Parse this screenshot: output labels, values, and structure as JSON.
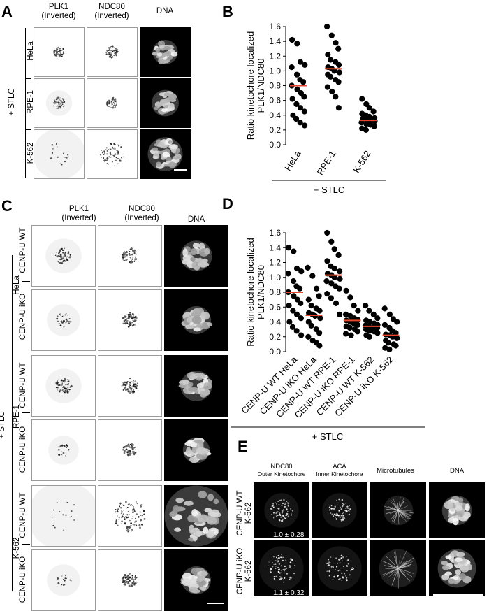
{
  "panel_a": {
    "letter": "A",
    "col_headers": [
      "PLK1\n(Inverted)",
      "NDC80\n(Inverted)",
      "DNA"
    ],
    "rows": [
      "HeLa",
      "RPE-1",
      "K-562"
    ],
    "group_label": "+ STLC"
  },
  "panel_b": {
    "letter": "B",
    "ylabel": "Ratio kinetochore localized\nPLK1/NDC80",
    "group_label": "+ STLC"
  },
  "panel_c": {
    "letter": "C",
    "col_headers": [
      "PLK1\n(Inverted)",
      "NDC80\n(Inverted)",
      "DNA"
    ],
    "rows": [
      "CENP-U WT",
      "CENP-U iKO",
      "CENP-U WT",
      "CENP-U iKO",
      "CENP-U WT",
      "CENP-U iKO"
    ],
    "cell_lines": [
      "HeLa",
      "RPE-1",
      "K-562"
    ],
    "group_label": "+ STLC"
  },
  "panel_d": {
    "letter": "D",
    "ylabel": "Ratio kinetochore localized\nPLK1/NDC80",
    "group_label": "+ STLC"
  },
  "panel_e": {
    "letter": "E",
    "col_headers": [
      {
        "title": "NDC80",
        "sub": "Outer Kinetochore"
      },
      {
        "title": "ACA",
        "sub": "Inner Kinetochore"
      },
      {
        "title": "Microtubules",
        "sub": ""
      },
      {
        "title": "DNA",
        "sub": ""
      }
    ],
    "rows": [
      "CENP-U WT\nK-562",
      "CENP-U iKO\nK-562"
    ],
    "ratios": [
      "1.0 ± 0.28",
      "1.1 ± 0.32"
    ]
  },
  "chart_data": [
    {
      "type": "scatter",
      "panel": "B",
      "title": "",
      "ylabel": "Ratio kinetochore localized PLK1/NDC80",
      "xlabel": "+ STLC",
      "ylim": [
        0,
        1.6
      ],
      "yticks": [
        "0.0",
        "0.2",
        "0.4",
        "0.6",
        "0.8",
        "1.0",
        "1.2",
        "1.4",
        "1.6"
      ],
      "categories": [
        "HeLa",
        "RPE-1",
        "K-562"
      ],
      "means": [
        0.8,
        1.03,
        0.33
      ],
      "mean_color": "#e8452c",
      "point_color": "#000000",
      "points": [
        [
          1.42,
          1.37,
          1.12,
          1.08,
          1.05,
          0.95,
          0.88,
          0.85,
          0.8,
          0.75,
          0.7,
          0.65,
          0.62,
          0.55,
          0.5,
          0.45,
          0.4,
          0.35,
          0.3,
          0.26
        ],
        [
          1.6,
          1.48,
          1.38,
          1.3,
          1.22,
          1.15,
          1.12,
          1.08,
          1.05,
          1.03,
          1.0,
          0.98,
          0.95,
          0.92,
          0.88,
          0.85,
          0.78,
          0.72,
          0.65,
          0.5
        ],
        [
          0.62,
          0.55,
          0.5,
          0.45,
          0.42,
          0.4,
          0.38,
          0.36,
          0.35,
          0.34,
          0.33,
          0.32,
          0.3,
          0.28,
          0.27,
          0.25,
          0.22,
          0.2
        ]
      ]
    },
    {
      "type": "scatter",
      "panel": "D",
      "title": "",
      "ylabel": "Ratio kinetochore localized PLK1/NDC80",
      "xlabel": "+ STLC",
      "ylim": [
        0,
        1.6
      ],
      "yticks": [
        "0.0",
        "0.2",
        "0.4",
        "0.6",
        "0.8",
        "1.0",
        "1.2",
        "1.4",
        "1.6"
      ],
      "categories": [
        "CENP-U WT HeLa",
        "CENP-U iKO HeLa",
        "CENP-U WT RPE-1",
        "CENP-U iKO RPE-1",
        "CENP-U WT K-562",
        "CENP-U iKO K-562"
      ],
      "means": [
        0.8,
        0.49,
        1.03,
        0.42,
        0.34,
        0.22
      ],
      "mean_color": "#e8452c",
      "point_color": "#000000",
      "points": [
        [
          1.4,
          1.35,
          1.12,
          1.08,
          1.05,
          0.95,
          0.88,
          0.85,
          0.8,
          0.75,
          0.7,
          0.65,
          0.62,
          0.55,
          0.5,
          0.45,
          0.4,
          0.33,
          0.28,
          0.22
        ],
        [
          1.13,
          1.02,
          0.85,
          0.75,
          0.7,
          0.62,
          0.58,
          0.55,
          0.52,
          0.5,
          0.48,
          0.45,
          0.4,
          0.35,
          0.3,
          0.25,
          0.2,
          0.15,
          0.12,
          0.08
        ],
        [
          1.6,
          1.48,
          1.38,
          1.3,
          1.22,
          1.15,
          1.12,
          1.08,
          1.05,
          1.03,
          1.0,
          0.98,
          0.95,
          0.92,
          0.88,
          0.85,
          0.78,
          0.72,
          0.65,
          0.5
        ],
        [
          0.82,
          0.73,
          0.62,
          0.55,
          0.5,
          0.48,
          0.45,
          0.43,
          0.42,
          0.4,
          0.38,
          0.36,
          0.34,
          0.32,
          0.3,
          0.27,
          0.24,
          0.22
        ],
        [
          0.62,
          0.55,
          0.5,
          0.45,
          0.42,
          0.4,
          0.38,
          0.36,
          0.35,
          0.34,
          0.33,
          0.32,
          0.3,
          0.28,
          0.27,
          0.25,
          0.22,
          0.2
        ],
        [
          0.58,
          0.5,
          0.44,
          0.4,
          0.36,
          0.32,
          0.28,
          0.25,
          0.23,
          0.22,
          0.2,
          0.18,
          0.15,
          0.12,
          0.1,
          0.08,
          0.05,
          0.03
        ]
      ]
    }
  ]
}
